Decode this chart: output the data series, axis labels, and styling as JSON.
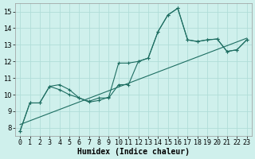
{
  "title": "",
  "xlabel": "Humidex (Indice chaleur)",
  "ylabel": "",
  "background_color": "#cff0ec",
  "line_color": "#1e6e62",
  "xlim": [
    -0.5,
    23.5
  ],
  "ylim": [
    7.5,
    15.5
  ],
  "xticks": [
    0,
    1,
    2,
    3,
    4,
    5,
    6,
    7,
    8,
    9,
    10,
    11,
    12,
    13,
    14,
    15,
    16,
    17,
    18,
    19,
    20,
    21,
    22,
    23
  ],
  "yticks": [
    8,
    9,
    10,
    11,
    12,
    13,
    14,
    15
  ],
  "grid_color": "#b0ddd8",
  "series1_x": [
    0,
    1,
    2,
    3,
    4,
    5,
    6,
    7,
    8,
    9,
    10,
    11,
    12,
    13,
    14,
    15,
    16,
    17,
    18,
    19,
    20,
    21,
    22,
    23
  ],
  "series1_y": [
    7.8,
    9.5,
    9.5,
    10.5,
    10.6,
    10.3,
    9.8,
    9.6,
    9.8,
    9.8,
    10.6,
    10.6,
    12.0,
    12.2,
    13.8,
    14.8,
    15.2,
    13.3,
    13.2,
    13.3,
    13.35,
    12.6,
    12.7,
    13.3
  ],
  "series2_x": [
    0,
    1,
    2,
    3,
    4,
    5,
    6,
    7,
    8,
    9,
    10,
    11,
    12,
    13,
    14,
    15,
    16,
    17,
    18,
    19,
    20,
    21,
    22,
    23
  ],
  "series2_y": [
    7.8,
    9.5,
    9.5,
    10.5,
    10.3,
    10.0,
    9.8,
    9.55,
    9.65,
    9.85,
    11.9,
    11.9,
    12.0,
    12.2,
    13.8,
    14.8,
    15.2,
    13.3,
    13.2,
    13.3,
    13.35,
    12.6,
    12.7,
    13.3
  ],
  "series3_x": [
    0,
    23
  ],
  "series3_y": [
    8.2,
    13.4
  ]
}
